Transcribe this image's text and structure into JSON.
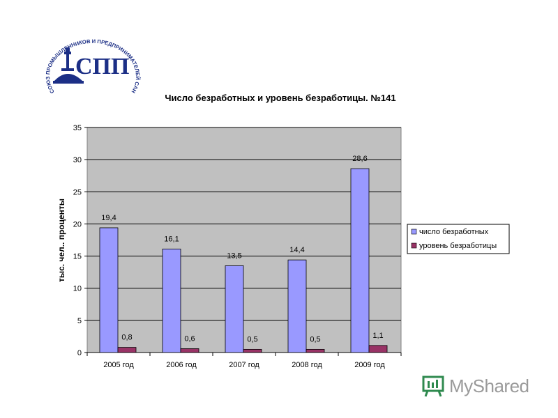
{
  "logo": {
    "ring_text": "СОЮЗ ПРОМЫШЛЕННИКОВ И ПРЕДПРИНИМАТЕЛЕЙ САНКТ-ПЕТЕРБУРГА",
    "monogram": "СПП"
  },
  "watermark": {
    "text": "MyShared"
  },
  "chart_data": {
    "type": "bar",
    "title": "Число безработных и уровень безработицы. №141",
    "xlabel": "",
    "ylabel": "тыс. чел.. проценты",
    "categories": [
      "2005 год",
      "2006 год",
      "2007 год",
      "2008 год",
      "2009 год"
    ],
    "ylim": [
      0,
      35
    ],
    "yticks": [
      0,
      5,
      10,
      15,
      20,
      25,
      30,
      35
    ],
    "grid": true,
    "legend": "right",
    "series": [
      {
        "name": "число безработных",
        "values": [
          19.4,
          16.1,
          13.5,
          14.4,
          28.6
        ],
        "labels": [
          "19,4",
          "16,1",
          "13,5",
          "14,4",
          "28,6"
        ],
        "color": "#9999ff"
      },
      {
        "name": "уровень безработицы",
        "values": [
          0.8,
          0.6,
          0.5,
          0.5,
          1.1
        ],
        "labels": [
          "0,8",
          "0,6",
          "0,5",
          "0,5",
          "1,1"
        ],
        "color": "#993366"
      }
    ],
    "plot_background": "#c0c0c0"
  }
}
